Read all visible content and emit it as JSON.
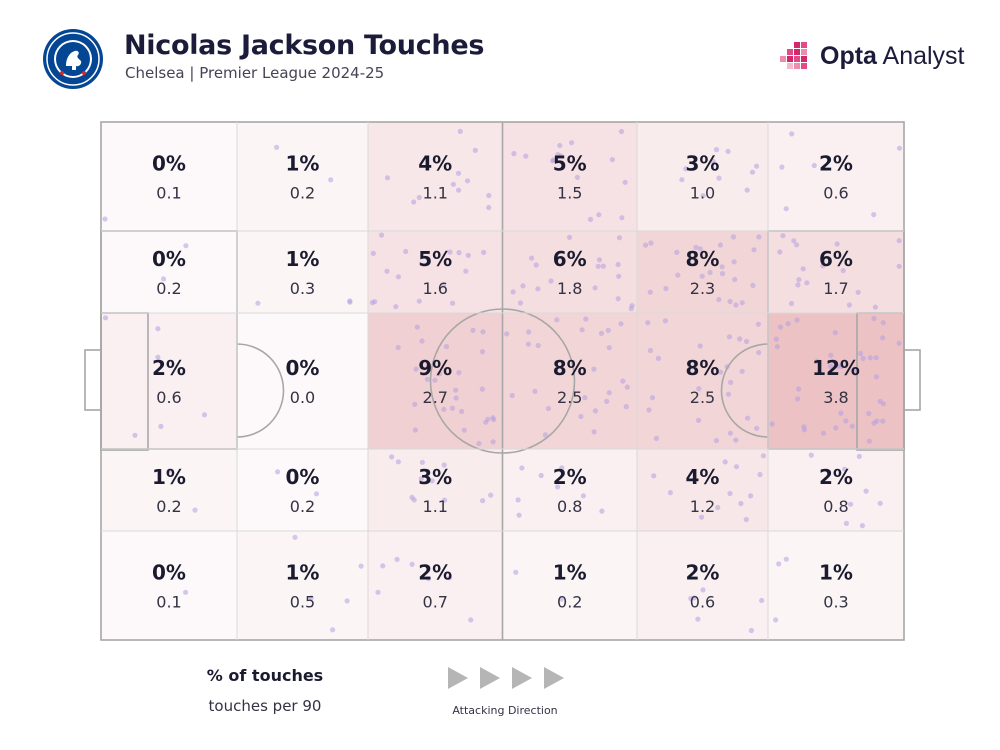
{
  "header": {
    "title": "Nicolas Jackson Touches",
    "subtitle": "Chelsea | Premier League 2024-25",
    "brand_bold": "Opta",
    "brand_light": " Analyst",
    "crest_icon": "chelsea-crest-icon",
    "brand_icon": "opta-mark-icon"
  },
  "colors": {
    "zone_base": "#e6b0b4",
    "dot": "#b59ee0",
    "pitch_line": "#a7a7a7"
  },
  "chart_data": {
    "type": "heatmap",
    "title": "Nicolas Jackson Touches",
    "subtitle": "Chelsea | Premier League 2024-25",
    "legend": {
      "primary": "% of touches",
      "secondary": "touches per 90"
    },
    "direction_label": "Attacking Direction",
    "rows": 5,
    "cols": 6,
    "grid": [
      [
        {
          "pct": "0%",
          "p90": "0.1"
        },
        {
          "pct": "1%",
          "p90": "0.2"
        },
        {
          "pct": "4%",
          "p90": "1.1"
        },
        {
          "pct": "5%",
          "p90": "1.5"
        },
        {
          "pct": "3%",
          "p90": "1.0"
        },
        {
          "pct": "2%",
          "p90": "0.6"
        }
      ],
      [
        {
          "pct": "0%",
          "p90": "0.2"
        },
        {
          "pct": "1%",
          "p90": "0.3"
        },
        {
          "pct": "5%",
          "p90": "1.6"
        },
        {
          "pct": "6%",
          "p90": "1.8"
        },
        {
          "pct": "8%",
          "p90": "2.3"
        },
        {
          "pct": "6%",
          "p90": "1.7"
        }
      ],
      [
        {
          "pct": "2%",
          "p90": "0.6"
        },
        {
          "pct": "0%",
          "p90": "0.0"
        },
        {
          "pct": "9%",
          "p90": "2.7"
        },
        {
          "pct": "8%",
          "p90": "2.5"
        },
        {
          "pct": "8%",
          "p90": "2.5"
        },
        {
          "pct": "12%",
          "p90": "3.8"
        }
      ],
      [
        {
          "pct": "1%",
          "p90": "0.2"
        },
        {
          "pct": "0%",
          "p90": "0.2"
        },
        {
          "pct": "3%",
          "p90": "1.1"
        },
        {
          "pct": "2%",
          "p90": "0.8"
        },
        {
          "pct": "4%",
          "p90": "1.2"
        },
        {
          "pct": "2%",
          "p90": "0.8"
        }
      ],
      [
        {
          "pct": "0%",
          "p90": "0.1"
        },
        {
          "pct": "1%",
          "p90": "0.5"
        },
        {
          "pct": "2%",
          "p90": "0.7"
        },
        {
          "pct": "1%",
          "p90": "0.2"
        },
        {
          "pct": "2%",
          "p90": "0.6"
        },
        {
          "pct": "1%",
          "p90": "0.3"
        }
      ]
    ]
  }
}
